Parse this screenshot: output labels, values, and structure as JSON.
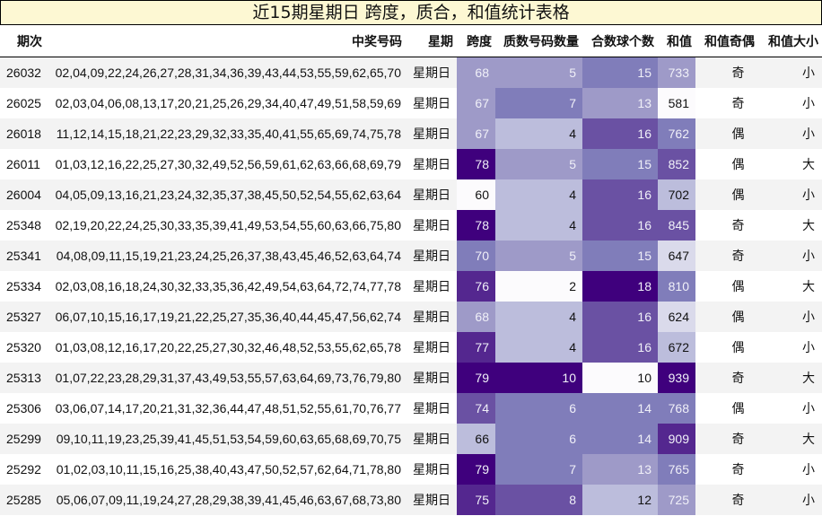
{
  "title": "近15期星期日 跨度，质合，和值统计表格",
  "colors": {
    "title_bg": "#fdf8d3",
    "scale": [
      "#fcfbfd",
      "#dadaeb",
      "#bcbddc",
      "#9e9ac8",
      "#807dba",
      "#6a51a3",
      "#54278f",
      "#3f007d"
    ]
  },
  "columns": [
    "期次",
    "中奖号码",
    "星期",
    "跨度",
    "质数号码数量",
    "合数球个数",
    "和值",
    "和值奇偶",
    "和值大小"
  ],
  "rows": [
    {
      "issue": "26032",
      "numbers": "02,04,09,22,24,26,27,28,31,34,36,39,43,44,53,55,59,62,65,70",
      "day": "星期日",
      "span": "68",
      "primes": "5",
      "composites": "15",
      "sum": "733",
      "parity": "奇",
      "size": "小"
    },
    {
      "issue": "26025",
      "numbers": "02,03,04,06,08,13,17,20,21,25,26,29,34,40,47,49,51,58,59,69",
      "day": "星期日",
      "span": "67",
      "primes": "7",
      "composites": "13",
      "sum": "581",
      "parity": "奇",
      "size": "小"
    },
    {
      "issue": "26018",
      "numbers": "11,12,14,15,18,21,22,23,29,32,33,35,40,41,55,65,69,74,75,78",
      "day": "星期日",
      "span": "67",
      "primes": "4",
      "composites": "16",
      "sum": "762",
      "parity": "偶",
      "size": "小"
    },
    {
      "issue": "26011",
      "numbers": "01,03,12,16,22,25,27,30,32,49,52,56,59,61,62,63,66,68,69,79",
      "day": "星期日",
      "span": "78",
      "primes": "5",
      "composites": "15",
      "sum": "852",
      "parity": "偶",
      "size": "大"
    },
    {
      "issue": "26004",
      "numbers": "04,05,09,13,16,21,23,24,32,35,37,38,45,50,52,54,55,62,63,64",
      "day": "星期日",
      "span": "60",
      "primes": "4",
      "composites": "16",
      "sum": "702",
      "parity": "偶",
      "size": "小"
    },
    {
      "issue": "25348",
      "numbers": "02,19,20,22,24,25,30,33,35,39,41,49,53,54,55,60,63,66,75,80",
      "day": "星期日",
      "span": "78",
      "primes": "4",
      "composites": "16",
      "sum": "845",
      "parity": "奇",
      "size": "大"
    },
    {
      "issue": "25341",
      "numbers": "04,08,09,11,15,19,21,23,24,25,26,37,38,43,45,46,52,63,64,74",
      "day": "星期日",
      "span": "70",
      "primes": "5",
      "composites": "15",
      "sum": "647",
      "parity": "奇",
      "size": "小"
    },
    {
      "issue": "25334",
      "numbers": "02,03,08,16,18,24,30,32,33,35,36,42,49,54,63,64,72,74,77,78",
      "day": "星期日",
      "span": "76",
      "primes": "2",
      "composites": "18",
      "sum": "810",
      "parity": "偶",
      "size": "大"
    },
    {
      "issue": "25327",
      "numbers": "06,07,10,15,16,17,19,21,22,25,27,35,36,40,44,45,47,56,62,74",
      "day": "星期日",
      "span": "68",
      "primes": "4",
      "composites": "16",
      "sum": "624",
      "parity": "偶",
      "size": "小"
    },
    {
      "issue": "25320",
      "numbers": "01,03,08,12,16,17,20,22,25,27,30,32,46,48,52,53,55,62,65,78",
      "day": "星期日",
      "span": "77",
      "primes": "4",
      "composites": "16",
      "sum": "672",
      "parity": "偶",
      "size": "小"
    },
    {
      "issue": "25313",
      "numbers": "01,07,22,23,28,29,31,37,43,49,53,55,57,63,64,69,73,76,79,80",
      "day": "星期日",
      "span": "79",
      "primes": "10",
      "composites": "10",
      "sum": "939",
      "parity": "奇",
      "size": "大"
    },
    {
      "issue": "25306",
      "numbers": "03,06,07,14,17,20,21,31,32,36,44,47,48,51,52,55,61,70,76,77",
      "day": "星期日",
      "span": "74",
      "primes": "6",
      "composites": "14",
      "sum": "768",
      "parity": "偶",
      "size": "小"
    },
    {
      "issue": "25299",
      "numbers": "09,10,11,19,23,25,39,41,45,51,53,54,59,60,63,65,68,69,70,75",
      "day": "星期日",
      "span": "66",
      "primes": "6",
      "composites": "14",
      "sum": "909",
      "parity": "奇",
      "size": "大"
    },
    {
      "issue": "25292",
      "numbers": "01,02,03,10,11,15,16,25,38,40,43,47,50,52,57,62,64,71,78,80",
      "day": "星期日",
      "span": "79",
      "primes": "7",
      "composites": "13",
      "sum": "765",
      "parity": "奇",
      "size": "小"
    },
    {
      "issue": "25285",
      "numbers": "05,06,07,09,11,19,24,27,28,29,38,39,41,45,46,63,67,68,73,80",
      "day": "星期日",
      "span": "75",
      "primes": "8",
      "composites": "12",
      "sum": "725",
      "parity": "奇",
      "size": "小"
    }
  ]
}
